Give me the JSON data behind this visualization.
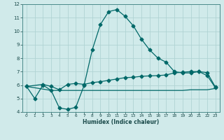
{
  "xlabel": "Humidex (Indice chaleur)",
  "xlim": [
    -0.5,
    23.5
  ],
  "ylim": [
    4,
    12
  ],
  "xticks": [
    0,
    1,
    2,
    3,
    4,
    5,
    6,
    7,
    8,
    9,
    10,
    11,
    12,
    13,
    14,
    15,
    16,
    17,
    18,
    19,
    20,
    21,
    22,
    23
  ],
  "yticks": [
    4,
    5,
    6,
    7,
    8,
    9,
    10,
    11,
    12
  ],
  "bg_color": "#d0eaea",
  "grid_color": "#b0d4d4",
  "line_color": "#006868",
  "line1_x": [
    0,
    1,
    2,
    3,
    4,
    5,
    6,
    7,
    8,
    9,
    10,
    11,
    12,
    13,
    14,
    15,
    16,
    17,
    18,
    19,
    20,
    21,
    22,
    23
  ],
  "line1_y": [
    5.9,
    5.0,
    6.0,
    5.6,
    4.3,
    4.2,
    4.35,
    5.95,
    8.6,
    10.5,
    11.45,
    11.6,
    11.1,
    10.4,
    9.4,
    8.6,
    8.0,
    7.7,
    7.0,
    6.9,
    6.9,
    7.0,
    6.7,
    5.8
  ],
  "line2_x": [
    0,
    2,
    3,
    4,
    5,
    6,
    7,
    8,
    9,
    10,
    11,
    12,
    13,
    14,
    15,
    16,
    17,
    18,
    19,
    20,
    21,
    22,
    23
  ],
  "line2_y": [
    5.9,
    6.05,
    5.9,
    5.65,
    6.05,
    6.12,
    6.05,
    6.18,
    6.25,
    6.35,
    6.45,
    6.55,
    6.58,
    6.65,
    6.68,
    6.7,
    6.75,
    6.9,
    6.95,
    7.0,
    7.0,
    6.92,
    5.85
  ],
  "line3_x": [
    0,
    3,
    4,
    5,
    6,
    7,
    8,
    9,
    10,
    11,
    12,
    13,
    14,
    15,
    16,
    17,
    18,
    19,
    20,
    21,
    22,
    23
  ],
  "line3_y": [
    5.9,
    5.6,
    5.6,
    5.6,
    5.6,
    5.6,
    5.6,
    5.6,
    5.6,
    5.6,
    5.6,
    5.6,
    5.6,
    5.6,
    5.6,
    5.6,
    5.6,
    5.6,
    5.65,
    5.65,
    5.65,
    5.75
  ],
  "marker_size": 2.5,
  "line_width": 0.9
}
